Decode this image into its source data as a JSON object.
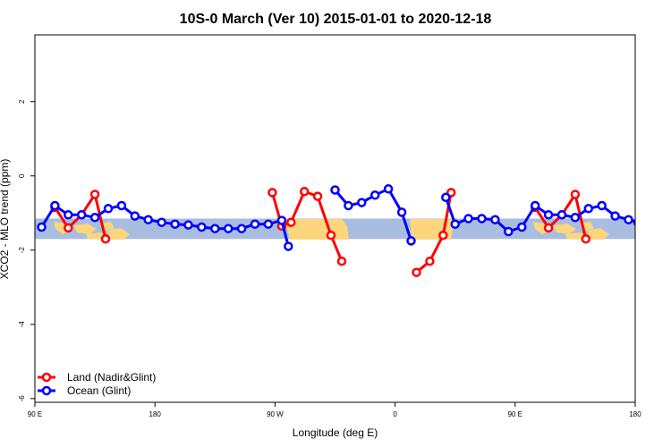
{
  "chart_data": {
    "type": "line",
    "title": "10S-0 March (Ver 10)   2015-01-01 to 2020-12-18",
    "xlabel": "Longitude (deg E)",
    "ylabel": "XCO2 - MLO trend (ppm)",
    "x_axis": {
      "range_deg_east": [
        90,
        540
      ],
      "ticks": [
        {
          "value": 90,
          "label": "90 E"
        },
        {
          "value": 180,
          "label": "180"
        },
        {
          "value": 270,
          "label": "90 W"
        },
        {
          "value": 360,
          "label": "0"
        },
        {
          "value": 450,
          "label": "90 E"
        },
        {
          "value": 540,
          "label": "180"
        }
      ]
    },
    "y_axis": {
      "range": [
        -6.1,
        3.8
      ],
      "ticks": [
        {
          "value": 2,
          "label": "2"
        },
        {
          "value": 0,
          "label": "0"
        },
        {
          "value": -2,
          "label": "-2"
        },
        {
          "value": -4,
          "label": "-4"
        },
        {
          "value": -6,
          "label": "-6"
        }
      ]
    },
    "band": {
      "ymin": -1.7,
      "ymax": -1.15,
      "color": "#a8bddf"
    },
    "land_color": "#fcd67c",
    "grid": false,
    "legend_position": "bottom-left",
    "series": [
      {
        "name": "Land (Nadir&Glint)",
        "color": "#ff0000",
        "segments": [
          {
            "x": [
              105,
              115,
              125,
              135,
              143
            ],
            "y": [
              -0.85,
              -1.4,
              -1.05,
              -0.5,
              -1.7
            ]
          },
          {
            "x": [
              268,
              275,
              282,
              292,
              302,
              312,
              320
            ],
            "y": [
              -0.45,
              -1.35,
              -1.25,
              -0.42,
              -0.55,
              -1.6,
              -2.3
            ]
          },
          {
            "x": [
              376,
              386,
              396,
              402
            ],
            "y": [
              -2.6,
              -2.3,
              -1.6,
              -0.45
            ]
          },
          {
            "x": [
              465,
              475,
              485,
              495,
              503
            ],
            "y": [
              -0.85,
              -1.4,
              -1.05,
              -0.5,
              -1.7
            ]
          }
        ]
      },
      {
        "name": "Ocean (Glint)",
        "color": "#0000ff",
        "segments": [
          {
            "x": [
              95,
              105,
              115,
              125,
              135,
              145,
              155,
              165,
              175,
              185,
              195,
              205,
              215,
              225,
              235,
              245,
              255,
              265,
              275,
              280
            ],
            "y": [
              -1.38,
              -0.8,
              -1.05,
              -1.05,
              -1.12,
              -0.88,
              -0.8,
              -1.08,
              -1.18,
              -1.25,
              -1.3,
              -1.32,
              -1.38,
              -1.42,
              -1.42,
              -1.42,
              -1.3,
              -1.3,
              -1.2,
              -1.9
            ]
          },
          {
            "x": [
              315,
              325,
              335,
              345,
              355,
              365,
              372
            ],
            "y": [
              -0.38,
              -0.8,
              -0.72,
              -0.52,
              -0.35,
              -0.98,
              -1.75
            ]
          },
          {
            "x": [
              398,
              405,
              415,
              425,
              435,
              445,
              455,
              465,
              475,
              485,
              495,
              505,
              515,
              525,
              535,
              542
            ],
            "y": [
              -0.58,
              -1.3,
              -1.15,
              -1.15,
              -1.18,
              -1.5,
              -1.38,
              -0.8,
              -1.05,
              -1.05,
              -1.12,
              -0.88,
              -0.8,
              -1.08,
              -1.18,
              -1.25
            ]
          }
        ]
      }
    ]
  }
}
